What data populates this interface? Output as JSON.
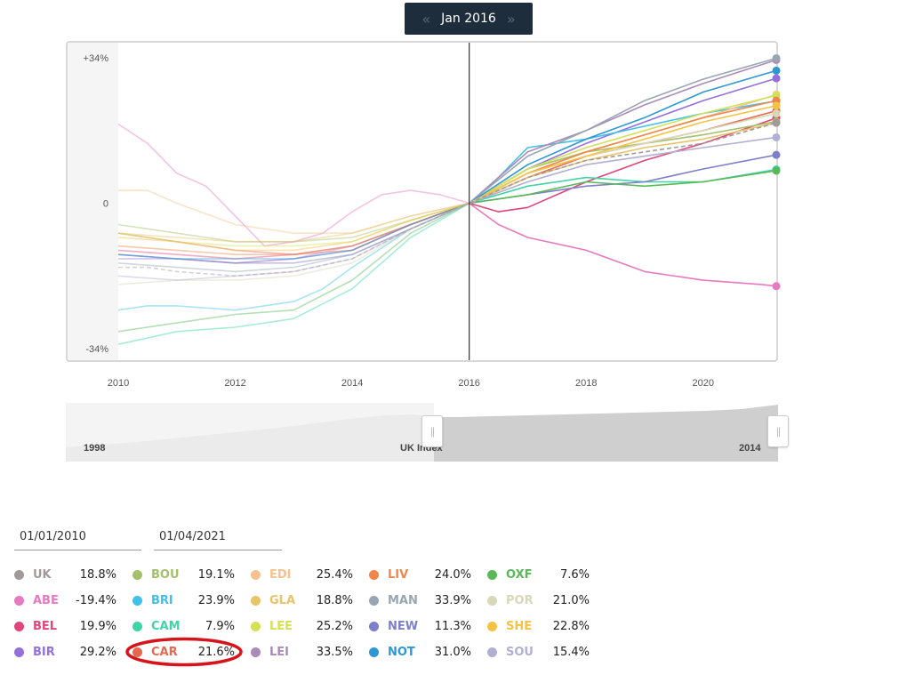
{
  "date_selector": {
    "label": "Jan 2016",
    "prev": "«",
    "next": "»"
  },
  "navigator": {
    "start_label": "1998",
    "middle_label": "UK Index",
    "end_label": "2014"
  },
  "date_range": {
    "from": "01/01/2010",
    "to": "01/04/2021"
  },
  "colors": {
    "nav_bg": "#1e2d3b",
    "annotation": "#d6141c",
    "uk_dash": "#a29a9a"
  },
  "chart_data": {
    "type": "line",
    "title": "",
    "xlabel": "",
    "ylabel": "",
    "xlim": [
      2010,
      2021.25
    ],
    "ylim": [
      -34,
      34
    ],
    "x_ticks": [
      "2010",
      "2012",
      "2014",
      "2016",
      "2018",
      "2020"
    ],
    "y_ticks": [
      "+34%",
      "0",
      "-34%"
    ],
    "marker_x": 2016,
    "series": [
      {
        "name": "UK",
        "color": "#a29a9a",
        "dashed": true,
        "change": "18.8%",
        "points": [
          [
            2010,
            -15
          ],
          [
            2010.5,
            -15
          ],
          [
            2011,
            -16
          ],
          [
            2012,
            -17
          ],
          [
            2013,
            -16
          ],
          [
            2014,
            -13
          ],
          [
            2015,
            -6
          ],
          [
            2016,
            0
          ],
          [
            2017,
            6
          ],
          [
            2018,
            10
          ],
          [
            2019,
            12
          ],
          [
            2020,
            14
          ],
          [
            2021.25,
            18.8
          ]
        ]
      },
      {
        "name": "ABE",
        "color": "#e779c1",
        "change": "-19.4%",
        "points": [
          [
            2010,
            18.5
          ],
          [
            2010.5,
            14
          ],
          [
            2011,
            7
          ],
          [
            2011.5,
            4
          ],
          [
            2012,
            -3
          ],
          [
            2012.5,
            -10
          ],
          [
            2013,
            -9
          ],
          [
            2013.5,
            -7
          ],
          [
            2014,
            -2
          ],
          [
            2014.5,
            2
          ],
          [
            2015,
            3
          ],
          [
            2015.5,
            2
          ],
          [
            2016,
            0
          ],
          [
            2016.5,
            -5
          ],
          [
            2017,
            -8
          ],
          [
            2018,
            -11
          ],
          [
            2019,
            -16
          ],
          [
            2020,
            -18
          ],
          [
            2021,
            -19
          ],
          [
            2021.25,
            -19.4
          ]
        ]
      },
      {
        "name": "BEL",
        "color": "#e0467a",
        "change": "19.9%",
        "points": [
          [
            2010,
            -11
          ],
          [
            2011,
            -12
          ],
          [
            2012,
            -13
          ],
          [
            2013,
            -12
          ],
          [
            2014,
            -10
          ],
          [
            2015,
            -5
          ],
          [
            2016,
            0
          ],
          [
            2016.5,
            -2
          ],
          [
            2017,
            -1
          ],
          [
            2018,
            5
          ],
          [
            2019,
            10
          ],
          [
            2020,
            14
          ],
          [
            2021.25,
            19.9
          ]
        ]
      },
      {
        "name": "BIR",
        "color": "#9370db",
        "change": "29.2%",
        "points": [
          [
            2010,
            -13
          ],
          [
            2011,
            -13
          ],
          [
            2012,
            -14
          ],
          [
            2013,
            -13
          ],
          [
            2014,
            -11
          ],
          [
            2015,
            -5
          ],
          [
            2016,
            0
          ],
          [
            2017,
            8
          ],
          [
            2018,
            14
          ],
          [
            2019,
            19
          ],
          [
            2020,
            24
          ],
          [
            2021.25,
            29.2
          ]
        ]
      },
      {
        "name": "BOU",
        "color": "#a3c06a",
        "change": "19.1%",
        "points": [
          [
            2010,
            -5
          ],
          [
            2011,
            -7
          ],
          [
            2012,
            -9
          ],
          [
            2013,
            -9
          ],
          [
            2014,
            -8
          ],
          [
            2015,
            -4
          ],
          [
            2016,
            0
          ],
          [
            2017,
            8
          ],
          [
            2018,
            12
          ],
          [
            2019,
            14
          ],
          [
            2020,
            16
          ],
          [
            2021.25,
            19.1
          ]
        ]
      },
      {
        "name": "BRI",
        "color": "#41c0e8",
        "change": "23.9%",
        "points": [
          [
            2010,
            -25
          ],
          [
            2010.5,
            -24
          ],
          [
            2011,
            -24
          ],
          [
            2012,
            -25
          ],
          [
            2013,
            -23
          ],
          [
            2013.5,
            -20
          ],
          [
            2014,
            -15
          ],
          [
            2015,
            -6
          ],
          [
            2016,
            0
          ],
          [
            2016.5,
            6
          ],
          [
            2017,
            13
          ],
          [
            2018,
            15
          ],
          [
            2019,
            18
          ],
          [
            2020,
            21
          ],
          [
            2021.25,
            23.9
          ]
        ]
      },
      {
        "name": "CAM",
        "color": "#3fd4a6",
        "change": "7.9%",
        "points": [
          [
            2010,
            -33
          ],
          [
            2011,
            -30
          ],
          [
            2012,
            -29
          ],
          [
            2013,
            -27
          ],
          [
            2014,
            -20
          ],
          [
            2015,
            -8
          ],
          [
            2016,
            0
          ],
          [
            2017,
            4
          ],
          [
            2018,
            6
          ],
          [
            2019,
            5
          ],
          [
            2020,
            5
          ],
          [
            2021.25,
            7.9
          ]
        ]
      },
      {
        "name": "CAR",
        "color": "#e5694e",
        "change": "21.6%",
        "points": [
          [
            2010,
            -7
          ],
          [
            2011,
            -9
          ],
          [
            2012,
            -11
          ],
          [
            2013,
            -12
          ],
          [
            2014,
            -11
          ],
          [
            2015,
            -5
          ],
          [
            2016,
            0
          ],
          [
            2017,
            6
          ],
          [
            2018,
            11
          ],
          [
            2019,
            14
          ],
          [
            2020,
            17
          ],
          [
            2021.25,
            21.6
          ]
        ]
      },
      {
        "name": "EDI",
        "color": "#f7c28f",
        "change": "25.4%",
        "points": [
          [
            2010,
            3
          ],
          [
            2010.5,
            3
          ],
          [
            2011,
            0
          ],
          [
            2012,
            -5
          ],
          [
            2013,
            -7
          ],
          [
            2014,
            -7
          ],
          [
            2015,
            -3
          ],
          [
            2016,
            0
          ],
          [
            2017,
            7
          ],
          [
            2018,
            12
          ],
          [
            2019,
            16
          ],
          [
            2020,
            20
          ],
          [
            2021.25,
            25.4
          ]
        ]
      },
      {
        "name": "GLA",
        "color": "#e8c468",
        "change": "18.8%",
        "points": [
          [
            2010,
            -7
          ],
          [
            2011,
            -8
          ],
          [
            2012,
            -9
          ],
          [
            2013,
            -9
          ],
          [
            2014,
            -7
          ],
          [
            2015,
            -3
          ],
          [
            2016,
            0
          ],
          [
            2017,
            6
          ],
          [
            2018,
            10
          ],
          [
            2019,
            13
          ],
          [
            2020,
            15
          ],
          [
            2021.25,
            18.8
          ]
        ]
      },
      {
        "name": "LEE",
        "color": "#d4e157",
        "change": "25.2%",
        "points": [
          [
            2010,
            -7
          ],
          [
            2011,
            -9
          ],
          [
            2012,
            -10
          ],
          [
            2013,
            -10
          ],
          [
            2014,
            -9
          ],
          [
            2015,
            -4
          ],
          [
            2016,
            0
          ],
          [
            2017,
            8
          ],
          [
            2018,
            13
          ],
          [
            2019,
            17
          ],
          [
            2020,
            21
          ],
          [
            2021.25,
            25.2
          ]
        ]
      },
      {
        "name": "LEI",
        "color": "#aa8bb8",
        "change": "33.5%",
        "points": [
          [
            2010,
            -12
          ],
          [
            2011,
            -13
          ],
          [
            2012,
            -14
          ],
          [
            2013,
            -13
          ],
          [
            2014,
            -10
          ],
          [
            2015,
            -5
          ],
          [
            2016,
            0
          ],
          [
            2017,
            12
          ],
          [
            2018,
            17
          ],
          [
            2019,
            23
          ],
          [
            2020,
            28
          ],
          [
            2021.25,
            33.5
          ]
        ]
      },
      {
        "name": "LIV",
        "color": "#f0864a",
        "change": "24.0%",
        "points": [
          [
            2010,
            -10
          ],
          [
            2011,
            -11
          ],
          [
            2012,
            -12
          ],
          [
            2013,
            -12
          ],
          [
            2014,
            -10
          ],
          [
            2015,
            -5
          ],
          [
            2016,
            0
          ],
          [
            2017,
            7
          ],
          [
            2018,
            12
          ],
          [
            2019,
            16
          ],
          [
            2020,
            20
          ],
          [
            2021.25,
            24.0
          ]
        ]
      },
      {
        "name": "MAN",
        "color": "#97a6b2",
        "change": "33.9%",
        "points": [
          [
            2010,
            -14
          ],
          [
            2011,
            -15
          ],
          [
            2012,
            -16
          ],
          [
            2013,
            -15
          ],
          [
            2014,
            -12
          ],
          [
            2015,
            -6
          ],
          [
            2016,
            0
          ],
          [
            2017,
            11
          ],
          [
            2018,
            17
          ],
          [
            2019,
            24
          ],
          [
            2020,
            29
          ],
          [
            2021.25,
            33.9
          ]
        ]
      },
      {
        "name": "NEW",
        "color": "#7d7fc8",
        "change": "11.3%",
        "points": [
          [
            2010,
            -12
          ],
          [
            2011,
            -13
          ],
          [
            2012,
            -14
          ],
          [
            2013,
            -14
          ],
          [
            2014,
            -12
          ],
          [
            2015,
            -6
          ],
          [
            2016,
            0
          ],
          [
            2017,
            2
          ],
          [
            2018,
            4
          ],
          [
            2019,
            5
          ],
          [
            2020,
            8
          ],
          [
            2021.25,
            11.3
          ]
        ]
      },
      {
        "name": "NOT",
        "color": "#2d98d4",
        "change": "31.0%",
        "points": [
          [
            2010,
            -12
          ],
          [
            2011,
            -13
          ],
          [
            2012,
            -13
          ],
          [
            2013,
            -13
          ],
          [
            2014,
            -11
          ],
          [
            2015,
            -5
          ],
          [
            2016,
            0
          ],
          [
            2017,
            9
          ],
          [
            2018,
            15
          ],
          [
            2019,
            20
          ],
          [
            2020,
            26
          ],
          [
            2021.25,
            31.0
          ]
        ]
      },
      {
        "name": "OXF",
        "color": "#5ab85a",
        "change": "7.6%",
        "points": [
          [
            2010,
            -30
          ],
          [
            2011,
            -28
          ],
          [
            2012,
            -26
          ],
          [
            2013,
            -25
          ],
          [
            2014,
            -18
          ],
          [
            2015,
            -7
          ],
          [
            2016,
            0
          ],
          [
            2017,
            2
          ],
          [
            2018,
            5
          ],
          [
            2019,
            4
          ],
          [
            2020,
            5
          ],
          [
            2021.25,
            7.6
          ]
        ]
      },
      {
        "name": "POR",
        "color": "#d8d8b8",
        "change": "21.0%",
        "points": [
          [
            2010,
            -19
          ],
          [
            2011,
            -18
          ],
          [
            2012,
            -18
          ],
          [
            2013,
            -17
          ],
          [
            2014,
            -14
          ],
          [
            2015,
            -6
          ],
          [
            2016,
            0
          ],
          [
            2017,
            7
          ],
          [
            2018,
            11
          ],
          [
            2019,
            14
          ],
          [
            2020,
            17
          ],
          [
            2021.25,
            21.0
          ]
        ]
      },
      {
        "name": "SHE",
        "color": "#f5c244",
        "change": "22.8%",
        "points": [
          [
            2010,
            -8
          ],
          [
            2011,
            -9
          ],
          [
            2012,
            -11
          ],
          [
            2013,
            -11
          ],
          [
            2014,
            -9
          ],
          [
            2015,
            -4
          ],
          [
            2016,
            0
          ],
          [
            2017,
            7
          ],
          [
            2018,
            11
          ],
          [
            2019,
            15
          ],
          [
            2020,
            19
          ],
          [
            2021.25,
            22.8
          ]
        ]
      },
      {
        "name": "SOU",
        "color": "#b3afd4",
        "change": "15.4%",
        "points": [
          [
            2010,
            -17
          ],
          [
            2011,
            -18
          ],
          [
            2012,
            -17
          ],
          [
            2013,
            -16
          ],
          [
            2014,
            -13
          ],
          [
            2015,
            -6
          ],
          [
            2016,
            0
          ],
          [
            2017,
            5
          ],
          [
            2018,
            9
          ],
          [
            2019,
            11
          ],
          [
            2020,
            13
          ],
          [
            2021.25,
            15.4
          ]
        ]
      }
    ]
  }
}
